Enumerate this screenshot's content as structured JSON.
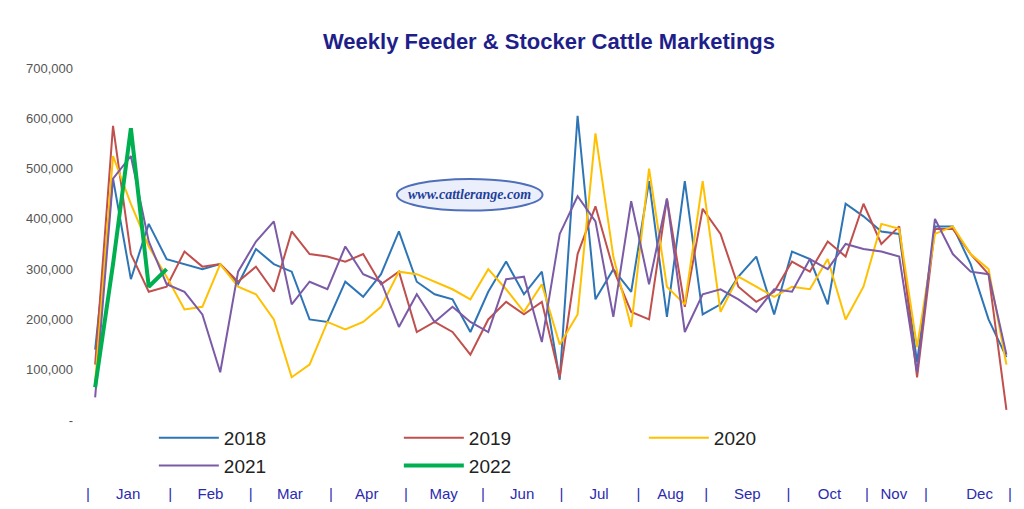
{
  "chart_data": {
    "type": "line",
    "title": "Weekly Feeder & Stocker Cattle Marketings",
    "annotations": [
      "www.cattlerange.com"
    ],
    "x": [
      1,
      2,
      3,
      4,
      5,
      6,
      7,
      8,
      9,
      10,
      11,
      12,
      13,
      14,
      15,
      16,
      17,
      18,
      19,
      20,
      21,
      22,
      23,
      24,
      25,
      26,
      27,
      28,
      29,
      30,
      31,
      32,
      33,
      34,
      35,
      36,
      37,
      38,
      39,
      40,
      41,
      42,
      43,
      44,
      45,
      46,
      47,
      48,
      49,
      50,
      51,
      52
    ],
    "xlim": [
      0.6,
      52.2
    ],
    "xticks": [
      {
        "value": 0.6,
        "label": "|"
      },
      {
        "value": 2.85,
        "label": "Jan"
      },
      {
        "value": 5.2,
        "label": "|"
      },
      {
        "value": 7.45,
        "label": "Feb"
      },
      {
        "value": 9.7,
        "label": "|"
      },
      {
        "value": 11.9,
        "label": "Mar"
      },
      {
        "value": 14.2,
        "label": "|"
      },
      {
        "value": 16.2,
        "label": "Apr"
      },
      {
        "value": 18.4,
        "label": "|"
      },
      {
        "value": 20.5,
        "label": "May"
      },
      {
        "value": 22.7,
        "label": "|"
      },
      {
        "value": 24.9,
        "label": "Jun"
      },
      {
        "value": 27.1,
        "label": "|"
      },
      {
        "value": 29.2,
        "label": "Jul"
      },
      {
        "value": 31.4,
        "label": "|"
      },
      {
        "value": 33.2,
        "label": "Aug"
      },
      {
        "value": 35.2,
        "label": "|"
      },
      {
        "value": 37.5,
        "label": "Sep"
      },
      {
        "value": 39.8,
        "label": "|"
      },
      {
        "value": 42.1,
        "label": "Oct"
      },
      {
        "value": 44.2,
        "label": "|"
      },
      {
        "value": 45.7,
        "label": "Nov"
      },
      {
        "value": 47.5,
        "label": "|"
      },
      {
        "value": 50.5,
        "label": "Dec"
      },
      {
        "value": 52.2,
        "label": "|"
      }
    ],
    "ylim": [
      0,
      700000
    ],
    "yticks": [
      {
        "value": 0,
        "label": "-"
      },
      {
        "value": 100000,
        "label": "100,000"
      },
      {
        "value": 200000,
        "label": "200,000"
      },
      {
        "value": 300000,
        "label": "300,000"
      },
      {
        "value": 400000,
        "label": "400,000"
      },
      {
        "value": 500000,
        "label": "500,000"
      },
      {
        "value": 600000,
        "label": "600,000"
      },
      {
        "value": 700000,
        "label": "700,000"
      }
    ],
    "grid": false,
    "legend": "bottom",
    "series": [
      {
        "name": "2018",
        "color": "#2e75b6",
        "values": [
          140000,
          480000,
          280000,
          390000,
          320000,
          310000,
          300000,
          310000,
          270000,
          340000,
          310000,
          295000,
          200000,
          195000,
          275000,
          245000,
          290000,
          375000,
          275000,
          250000,
          240000,
          175000,
          255000,
          315000,
          250000,
          295000,
          80000,
          605000,
          240000,
          300000,
          255000,
          475000,
          205000,
          475000,
          210000,
          230000,
          285000,
          325000,
          210000,
          335000,
          320000,
          230000,
          430000,
          405000,
          375000,
          370000,
          115000,
          385000,
          385000,
          310000,
          200000,
          125000
        ]
      },
      {
        "name": "2019",
        "color": "#c0504d",
        "values": [
          110000,
          585000,
          330000,
          255000,
          265000,
          335000,
          305000,
          310000,
          275000,
          305000,
          255000,
          375000,
          330000,
          325000,
          315000,
          330000,
          270000,
          295000,
          175000,
          195000,
          175000,
          130000,
          200000,
          235000,
          210000,
          235000,
          85000,
          330000,
          425000,
          300000,
          215000,
          200000,
          440000,
          225000,
          420000,
          370000,
          265000,
          235000,
          255000,
          315000,
          295000,
          355000,
          325000,
          430000,
          350000,
          385000,
          85000,
          380000,
          380000,
          330000,
          290000,
          20000
        ]
      },
      {
        "name": "2020",
        "color": "#ffc000",
        "values": [
          75000,
          525000,
          430000,
          345000,
          285000,
          220000,
          225000,
          310000,
          265000,
          250000,
          200000,
          85000,
          110000,
          195000,
          180000,
          195000,
          225000,
          295000,
          290000,
          275000,
          260000,
          240000,
          300000,
          260000,
          215000,
          270000,
          150000,
          210000,
          570000,
          325000,
          185000,
          500000,
          265000,
          230000,
          475000,
          215000,
          285000,
          265000,
          245000,
          265000,
          260000,
          320000,
          200000,
          265000,
          390000,
          380000,
          145000,
          370000,
          385000,
          330000,
          300000,
          110000
        ]
      },
      {
        "name": "2021",
        "color": "#7b5aa6",
        "values": [
          45000,
          480000,
          525000,
          355000,
          270000,
          255000,
          210000,
          95000,
          295000,
          355000,
          395000,
          230000,
          275000,
          260000,
          345000,
          290000,
          275000,
          185000,
          250000,
          195000,
          225000,
          195000,
          175000,
          280000,
          285000,
          155000,
          370000,
          445000,
          395000,
          205000,
          435000,
          270000,
          440000,
          175000,
          250000,
          260000,
          240000,
          215000,
          260000,
          255000,
          320000,
          300000,
          350000,
          340000,
          335000,
          325000,
          95000,
          400000,
          330000,
          295000,
          290000,
          130000
        ]
      },
      {
        "name": "2022",
        "color": "#00b050",
        "values": [
          65000,
          310000,
          580000,
          265000,
          300000,
          null,
          null,
          null,
          null,
          null,
          null,
          null,
          null,
          null,
          null,
          null,
          null,
          null,
          null,
          null,
          null,
          null,
          null,
          null,
          null,
          null,
          null,
          null,
          null,
          null,
          null,
          null,
          null,
          null,
          null,
          null,
          null,
          null,
          null,
          null,
          null,
          null,
          null,
          null,
          null,
          null,
          null,
          null,
          null,
          null,
          null,
          null
        ]
      }
    ]
  }
}
